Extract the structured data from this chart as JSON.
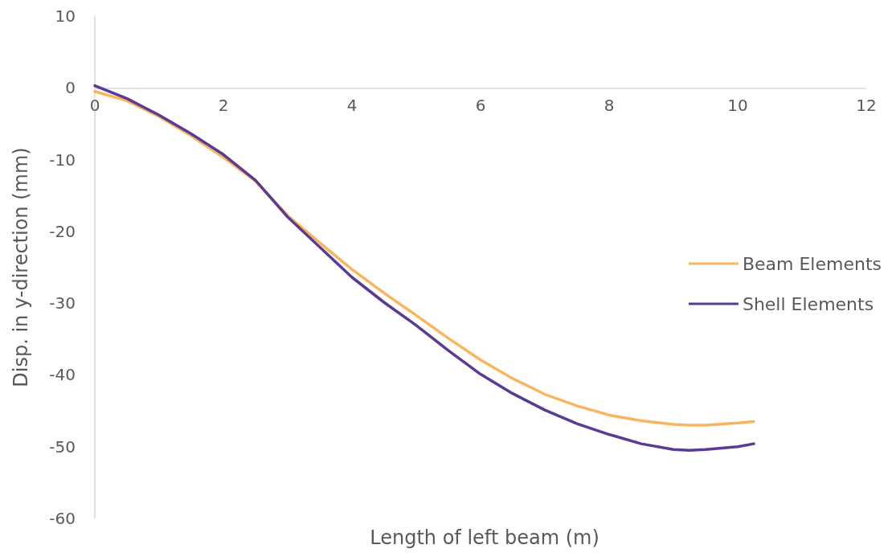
{
  "chart_data": {
    "type": "line",
    "xlabel": "Length of left beam (m)",
    "ylabel": "Disp. in y-direction (mm)",
    "xlim": [
      0,
      12
    ],
    "xticks": [
      0,
      2,
      4,
      6,
      8,
      10,
      12
    ],
    "ylim": [
      -60,
      10
    ],
    "yticks": [
      -60,
      -50,
      -40,
      -30,
      -20,
      -10,
      0,
      10
    ],
    "grid": false,
    "legend": "right",
    "marker": "none",
    "line_style": "solid",
    "series": [
      {
        "name": "Beam Elements",
        "color": "#f9b55e",
        "x": [
          0,
          0.5,
          1,
          1.5,
          2,
          2.5,
          3,
          3.5,
          4,
          4.5,
          5,
          5.5,
          6,
          6.5,
          7,
          7.5,
          8,
          8.5,
          9,
          9.25,
          9.5,
          10,
          10.25
        ],
        "values": [
          -0.5,
          -1.8,
          -4.0,
          -6.7,
          -9.7,
          -13.0,
          -17.8,
          -21.6,
          -25.3,
          -28.6,
          -31.7,
          -34.9,
          -37.9,
          -40.5,
          -42.7,
          -44.3,
          -45.6,
          -46.4,
          -46.9,
          -47.0,
          -47.0,
          -46.7,
          -46.5
        ]
      },
      {
        "name": "Shell Elements",
        "color": "#5b3a93",
        "x": [
          0,
          0.5,
          1,
          1.5,
          2,
          2.5,
          3,
          3.5,
          4,
          4.5,
          5,
          5.5,
          6,
          6.5,
          7,
          7.5,
          8,
          8.5,
          9,
          9.25,
          9.5,
          10,
          10.25
        ],
        "values": [
          0.3,
          -1.5,
          -3.8,
          -6.4,
          -9.3,
          -12.9,
          -18.0,
          -22.2,
          -26.4,
          -29.9,
          -33.1,
          -36.6,
          -39.9,
          -42.6,
          -44.9,
          -46.8,
          -48.3,
          -49.6,
          -50.4,
          -50.5,
          -50.4,
          -50.0,
          -49.6
        ]
      }
    ]
  }
}
